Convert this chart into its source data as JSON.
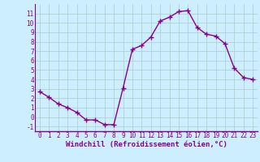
{
  "x": [
    0,
    1,
    2,
    3,
    4,
    5,
    6,
    7,
    8,
    9,
    10,
    11,
    12,
    13,
    14,
    15,
    16,
    17,
    18,
    19,
    20,
    21,
    22,
    23
  ],
  "y": [
    2.7,
    2.1,
    1.4,
    1.0,
    0.5,
    -0.3,
    -0.3,
    -0.8,
    -0.8,
    3.1,
    7.2,
    7.6,
    8.5,
    10.2,
    10.6,
    11.2,
    11.3,
    9.5,
    8.8,
    8.6,
    7.8,
    5.2,
    4.2,
    4.0
  ],
  "xlim": [
    -0.5,
    23.5
  ],
  "ylim": [
    -1.5,
    12.0
  ],
  "xticks": [
    0,
    1,
    2,
    3,
    4,
    5,
    6,
    7,
    8,
    9,
    10,
    11,
    12,
    13,
    14,
    15,
    16,
    17,
    18,
    19,
    20,
    21,
    22,
    23
  ],
  "yticks": [
    -1,
    0,
    1,
    2,
    3,
    4,
    5,
    6,
    7,
    8,
    9,
    10,
    11
  ],
  "xlabel": "Windchill (Refroidissement éolien,°C)",
  "line_color": "#880088",
  "marker": "+",
  "marker_size": 5,
  "linewidth": 1.0,
  "bg_color": "#cceeff",
  "grid_color": "#aacccc",
  "tick_label_fontsize": 5.5,
  "xlabel_fontsize": 6.5
}
